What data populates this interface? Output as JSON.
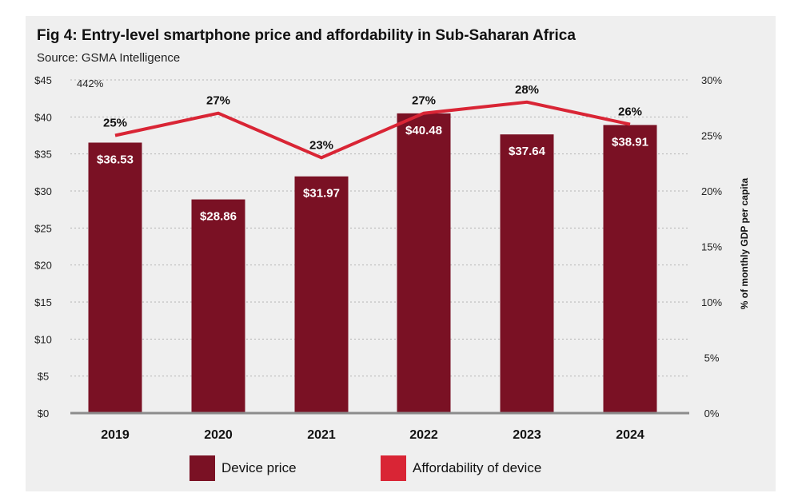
{
  "chart_data": {
    "type": "bar",
    "title": "Fig 4: Entry-level smartphone price and affordability in Sub-Saharan Africa",
    "subtitle": "Source: GSMA Intelligence",
    "categories": [
      "2019",
      "2020",
      "2021",
      "2022",
      "2023",
      "2024"
    ],
    "series": [
      {
        "name": "Device price",
        "type": "bar",
        "axis": "left",
        "values": [
          36.53,
          28.86,
          31.97,
          40.48,
          37.64,
          38.91
        ],
        "labels": [
          "$36.53",
          "$28.86",
          "$31.97",
          "$40.48",
          "$37.64",
          "$38.91"
        ],
        "color": "#7a1124"
      },
      {
        "name": "Affordability of device",
        "type": "line",
        "axis": "right",
        "values": [
          25,
          27,
          23,
          27,
          28,
          26
        ],
        "labels": [
          "25%",
          "27%",
          "23%",
          "27%",
          "28%",
          "26%"
        ],
        "color": "#d92535"
      }
    ],
    "y_left": {
      "ticks": [
        "$0",
        "$5",
        "$10",
        "$15",
        "$20",
        "$25",
        "$30",
        "$35",
        "$40",
        "$45"
      ],
      "ylim": [
        0,
        45
      ]
    },
    "y_right": {
      "label": "% of monthly GDP per capita",
      "ticks": [
        "0%",
        "5%",
        "10%",
        "15%",
        "20%",
        "25%",
        "30%"
      ],
      "ylim": [
        0,
        30
      ]
    },
    "annotation": "442%",
    "legend": {
      "placement": "bottom",
      "items": [
        {
          "label": "Device price",
          "color": "#7a1124"
        },
        {
          "label": "Affordability of device",
          "color": "#d92535"
        }
      ]
    }
  }
}
